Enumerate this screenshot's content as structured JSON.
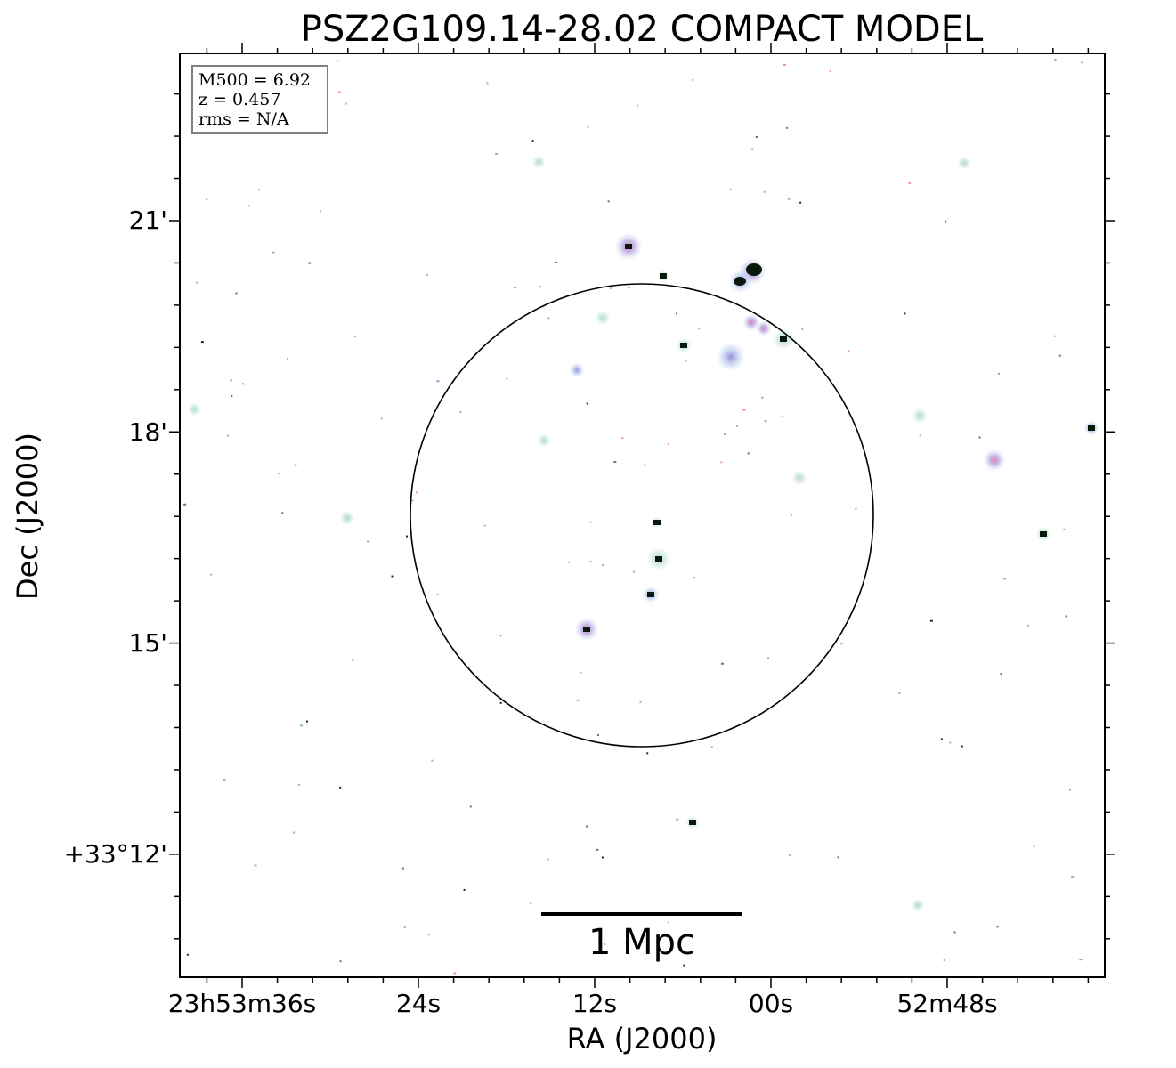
{
  "figure": {
    "title": "PSZ2G109.14-28.02 COMPACT MODEL",
    "xlabel": "RA (J2000)",
    "ylabel": "Dec (J2000)",
    "ra_ticks": [
      "23h53m36s",
      "24s",
      "12s",
      "00s",
      "52m48s"
    ],
    "dec_ticks": [
      "21'",
      "18'",
      "15'",
      "+33°12'"
    ],
    "info_box": {
      "mass": "M500 = 6.92",
      "redshift": "z = 0.457",
      "rms": "rms = N/A"
    },
    "scale_bar": {
      "label": "1 Mpc"
    }
  },
  "colors": {
    "source_glow": "#b7c8ee",
    "source_glow_green": "#c6e6da",
    "source_core": "#e07fa8",
    "dark_core": "#0a1a0a",
    "frame": "#000000"
  }
}
